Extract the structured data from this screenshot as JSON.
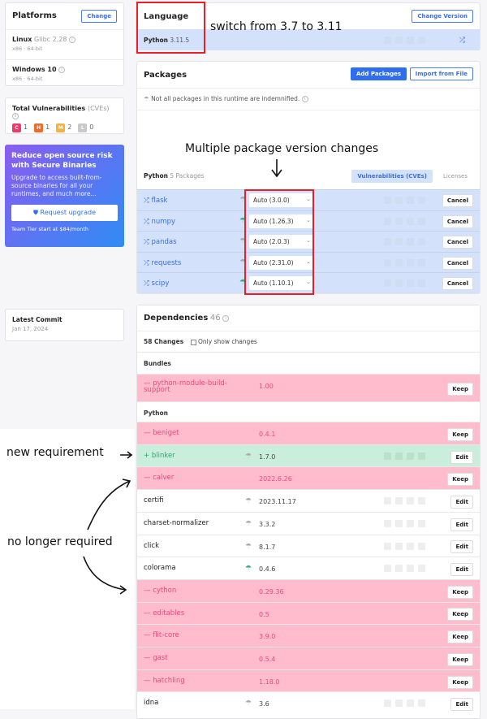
{
  "platforms": {
    "title": "Platforms",
    "change": "Change",
    "items": [
      {
        "name": "Linux",
        "detail": "Glibc 2.28",
        "arch": "x86 · 64-bit"
      },
      {
        "name": "Windows 10",
        "detail": "",
        "arch": "x86 · 64-bit"
      }
    ]
  },
  "vulns": {
    "title": "Total Vulnerabilities",
    "suffix": "(CVEs)",
    "badges": [
      {
        "letter": "C",
        "count": "1",
        "color": "#f0386b"
      },
      {
        "letter": "H",
        "count": "1",
        "color": "#f26b2a"
      },
      {
        "letter": "M",
        "count": "2",
        "color": "#f7b23b"
      },
      {
        "letter": "L",
        "count": "0",
        "color": "#c9c9c9"
      }
    ]
  },
  "promo": {
    "title": "Reduce open source risk with Secure Binaries",
    "body": "Upgrade to access built-from-source binaries for all your runtimes, and much more...",
    "button": "Request upgrade",
    "footer": "Team Tier start at $84/month"
  },
  "commit": {
    "title": "Latest Commit",
    "date": "Jan 17, 2024"
  },
  "language": {
    "title": "Language",
    "change": "Change Version",
    "name": "Python",
    "version": "3.11.5"
  },
  "packages": {
    "title": "Packages",
    "add": "Add Packages",
    "import": "Import from File",
    "notice": "Not all packages in this runtime are indemnified.",
    "lang": "Python",
    "count": "5 Packages",
    "tab_vulns": "Vulnerabilities (CVEs)",
    "tab_licenses": "Licenses",
    "cancel": "Cancel",
    "items": [
      {
        "name": "flask",
        "version": "Auto (3.0.0)",
        "indemnified": false
      },
      {
        "name": "numpy",
        "version": "Auto (1.26.3)",
        "indemnified": true
      },
      {
        "name": "pandas",
        "version": "Auto (2.0.3)",
        "indemnified": false
      },
      {
        "name": "requests",
        "version": "Auto (2.31.0)",
        "indemnified": false
      },
      {
        "name": "scipy",
        "version": "Auto (1.10.1)",
        "indemnified": true
      }
    ]
  },
  "deps": {
    "title": "Dependencies",
    "count": "46",
    "changes": "58 Changes",
    "only_changes": "Only show changes",
    "bundles": "Bundles",
    "python": "Python",
    "keep": "Keep",
    "edit": "Edit",
    "bundle_items": [
      {
        "name": "python-module-build-support",
        "version": "1.00",
        "status": "removed"
      }
    ],
    "items": [
      {
        "name": "beniget",
        "version": "0.4.1",
        "status": "removed"
      },
      {
        "name": "blinker",
        "version": "1.7.0",
        "status": "added",
        "indemnified": false
      },
      {
        "name": "calver",
        "version": "2022.6.26",
        "status": "removed"
      },
      {
        "name": "certifi",
        "version": "2023.11.17",
        "status": "same",
        "indemnified": false
      },
      {
        "name": "charset-normalizer",
        "version": "3.3.2",
        "status": "same",
        "indemnified": false
      },
      {
        "name": "click",
        "version": "8.1.7",
        "status": "same",
        "indemnified": false
      },
      {
        "name": "colorama",
        "version": "0.4.6",
        "status": "same",
        "indemnified": true
      },
      {
        "name": "cython",
        "version": "0.29.36",
        "status": "removed"
      },
      {
        "name": "editables",
        "version": "0.5",
        "status": "removed"
      },
      {
        "name": "flit-core",
        "version": "3.9.0",
        "status": "removed"
      },
      {
        "name": "gast",
        "version": "0.5.4",
        "status": "removed"
      },
      {
        "name": "hatchling",
        "version": "1.18.0",
        "status": "removed"
      },
      {
        "name": "idna",
        "version": "3.6",
        "status": "same",
        "indemnified": false
      }
    ]
  },
  "annotations": {
    "switch": "switch from 3.7 to 3.11",
    "multi": "Multiple package version changes",
    "new_req": "new requirement",
    "no_longer": "no longer required"
  }
}
